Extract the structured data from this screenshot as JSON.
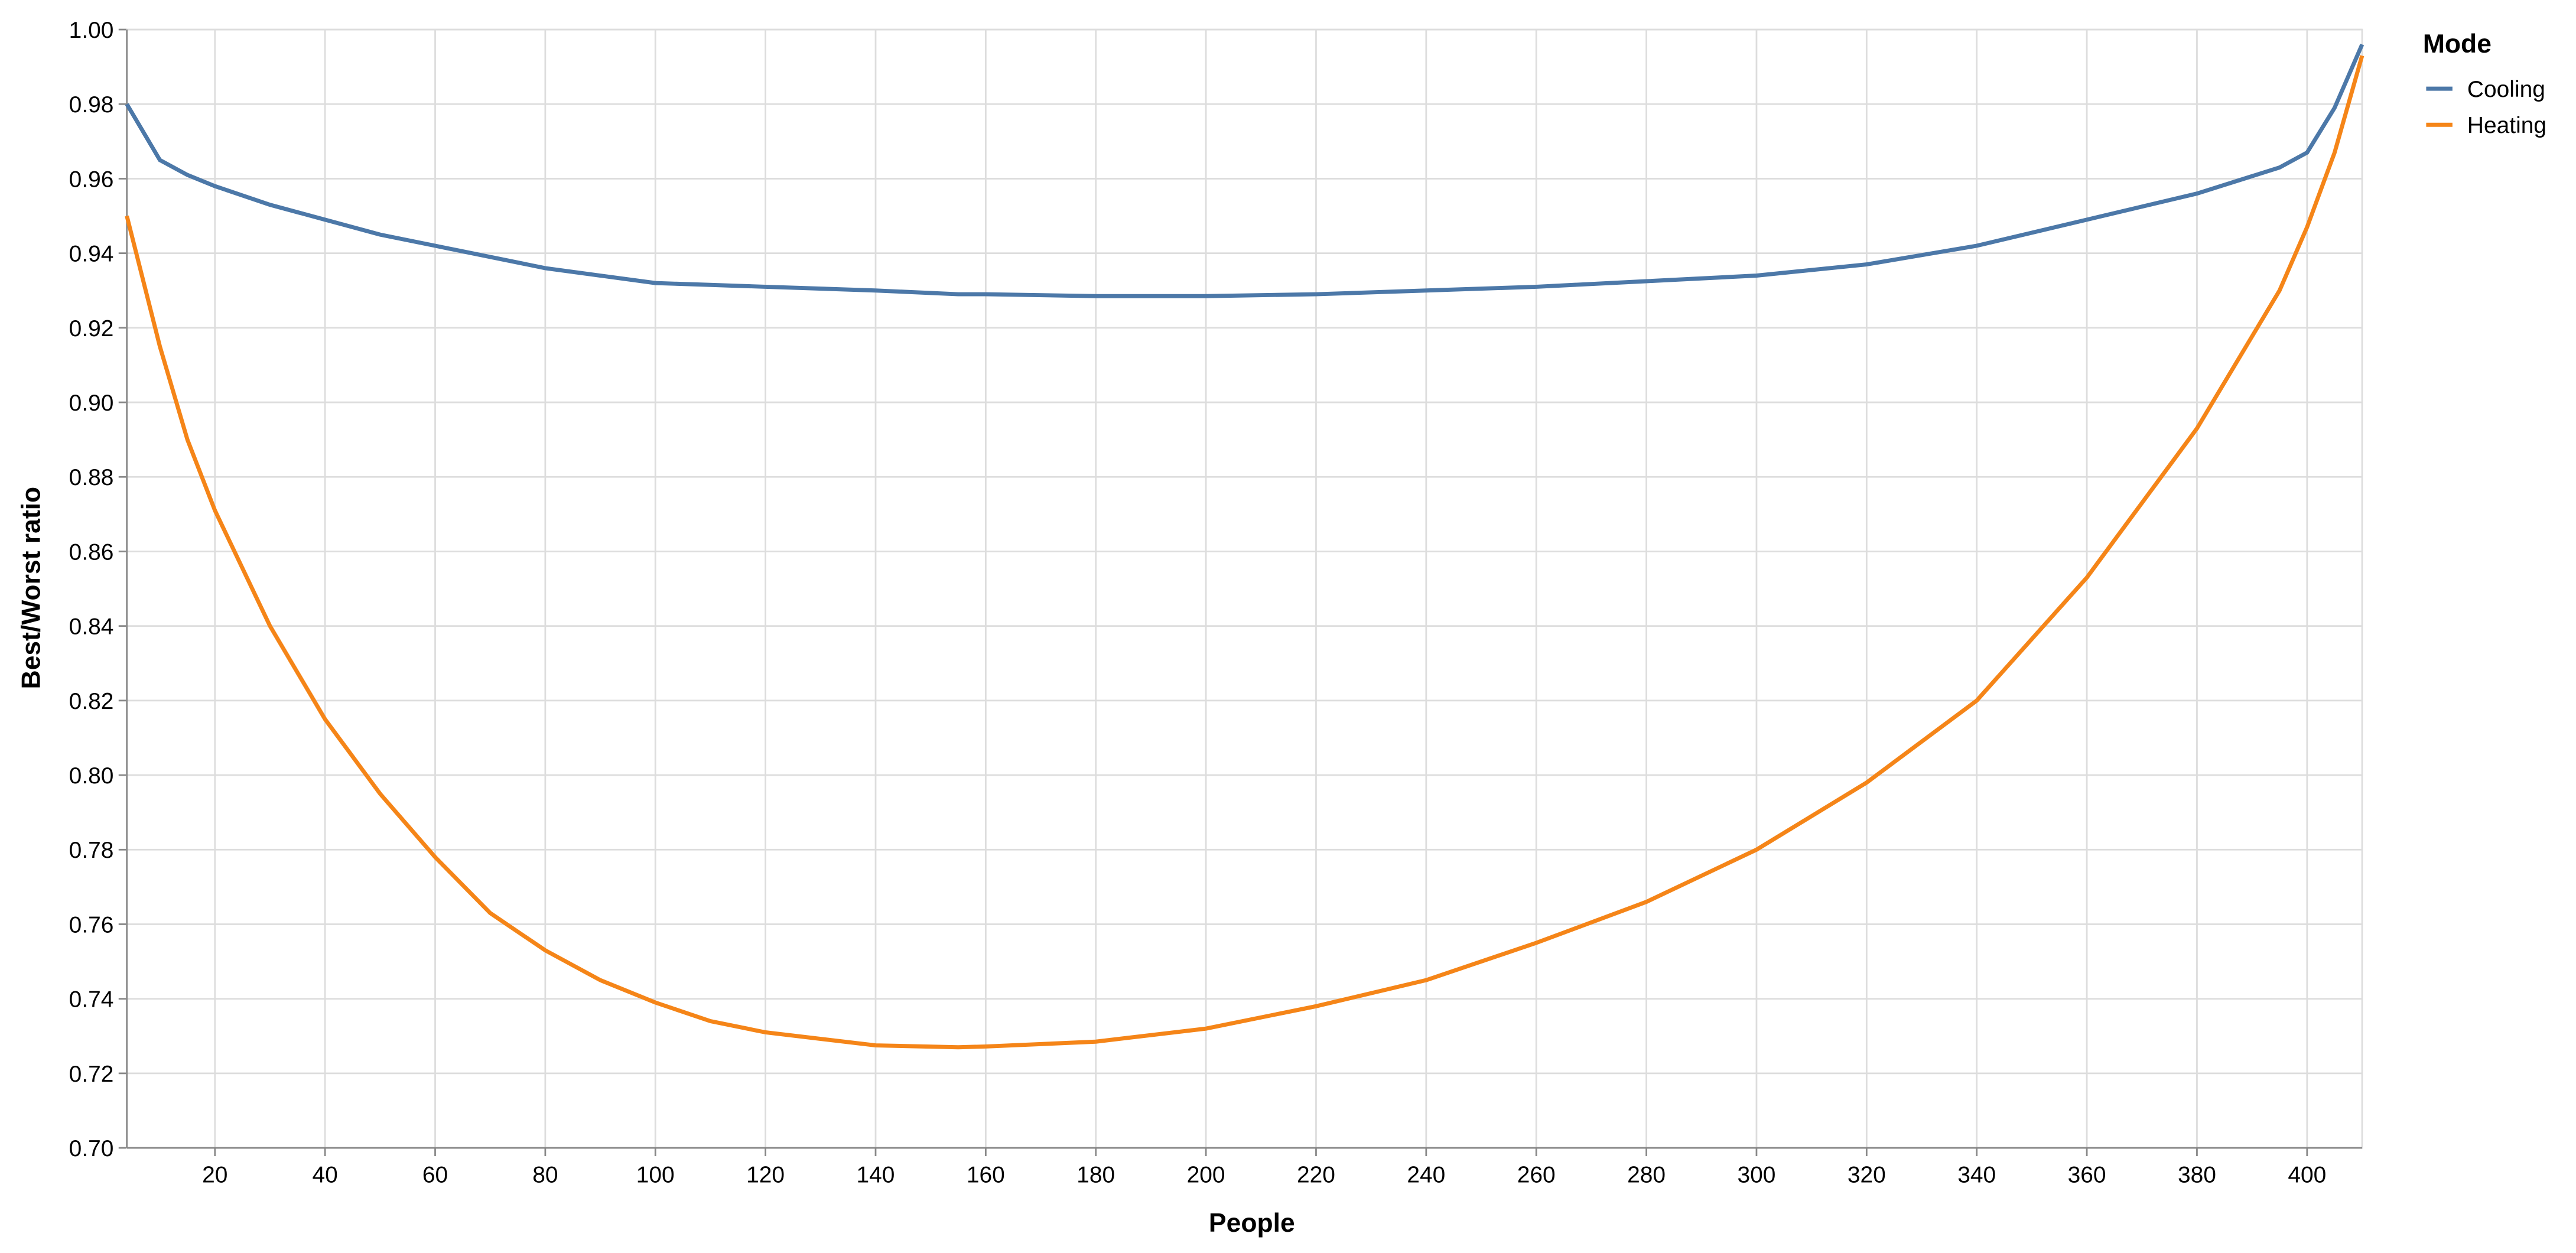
{
  "chart_data": {
    "type": "line",
    "x_label": "People",
    "y_label": "Best/Worst ratio",
    "legend_title": "Mode",
    "legend_position": "right",
    "grid": true,
    "x": [
      4,
      10,
      15,
      20,
      30,
      40,
      50,
      60,
      70,
      80,
      90,
      100,
      110,
      120,
      140,
      155,
      160,
      180,
      200,
      220,
      240,
      260,
      280,
      300,
      320,
      340,
      360,
      380,
      395,
      400,
      405,
      410
    ],
    "series": [
      {
        "name": "Cooling",
        "color": "#4c78a8",
        "values": [
          0.98,
          0.965,
          0.961,
          0.958,
          0.953,
          0.949,
          0.945,
          0.942,
          0.939,
          0.936,
          0.934,
          0.932,
          0.9315,
          0.931,
          0.93,
          0.929,
          0.929,
          0.9285,
          0.9285,
          0.929,
          0.93,
          0.931,
          0.9325,
          0.934,
          0.937,
          0.942,
          0.949,
          0.956,
          0.963,
          0.967,
          0.979,
          0.996
        ]
      },
      {
        "name": "Heating",
        "color": "#f58518",
        "values": [
          0.95,
          0.915,
          0.89,
          0.871,
          0.84,
          0.815,
          0.795,
          0.778,
          0.763,
          0.753,
          0.745,
          0.739,
          0.734,
          0.731,
          0.7275,
          0.727,
          0.7272,
          0.7285,
          0.732,
          0.738,
          0.745,
          0.755,
          0.766,
          0.78,
          0.798,
          0.82,
          0.853,
          0.893,
          0.93,
          0.947,
          0.967,
          0.993
        ]
      }
    ],
    "xlim": [
      4,
      410
    ],
    "xticks": [
      20,
      40,
      60,
      80,
      100,
      120,
      140,
      160,
      180,
      200,
      220,
      240,
      260,
      280,
      300,
      320,
      340,
      360,
      380,
      400
    ],
    "ylim": [
      0.7,
      1.0
    ],
    "yticks": [
      {
        "value": 0.7,
        "label": "0.70"
      },
      {
        "value": 0.72,
        "label": "0.72"
      },
      {
        "value": 0.74,
        "label": "0.74"
      },
      {
        "value": 0.76,
        "label": "0.76"
      },
      {
        "value": 0.78,
        "label": "0.78"
      },
      {
        "value": 0.8,
        "label": "0.80"
      },
      {
        "value": 0.82,
        "label": "0.82"
      },
      {
        "value": 0.84,
        "label": "0.84"
      },
      {
        "value": 0.86,
        "label": "0.86"
      },
      {
        "value": 0.88,
        "label": "0.88"
      },
      {
        "value": 0.9,
        "label": "0.90"
      },
      {
        "value": 0.92,
        "label": "0.92"
      },
      {
        "value": 0.94,
        "label": "0.94"
      },
      {
        "value": 0.96,
        "label": "0.96"
      },
      {
        "value": 0.98,
        "label": "0.98"
      },
      {
        "value": 1.0,
        "label": "1.00"
      }
    ]
  }
}
